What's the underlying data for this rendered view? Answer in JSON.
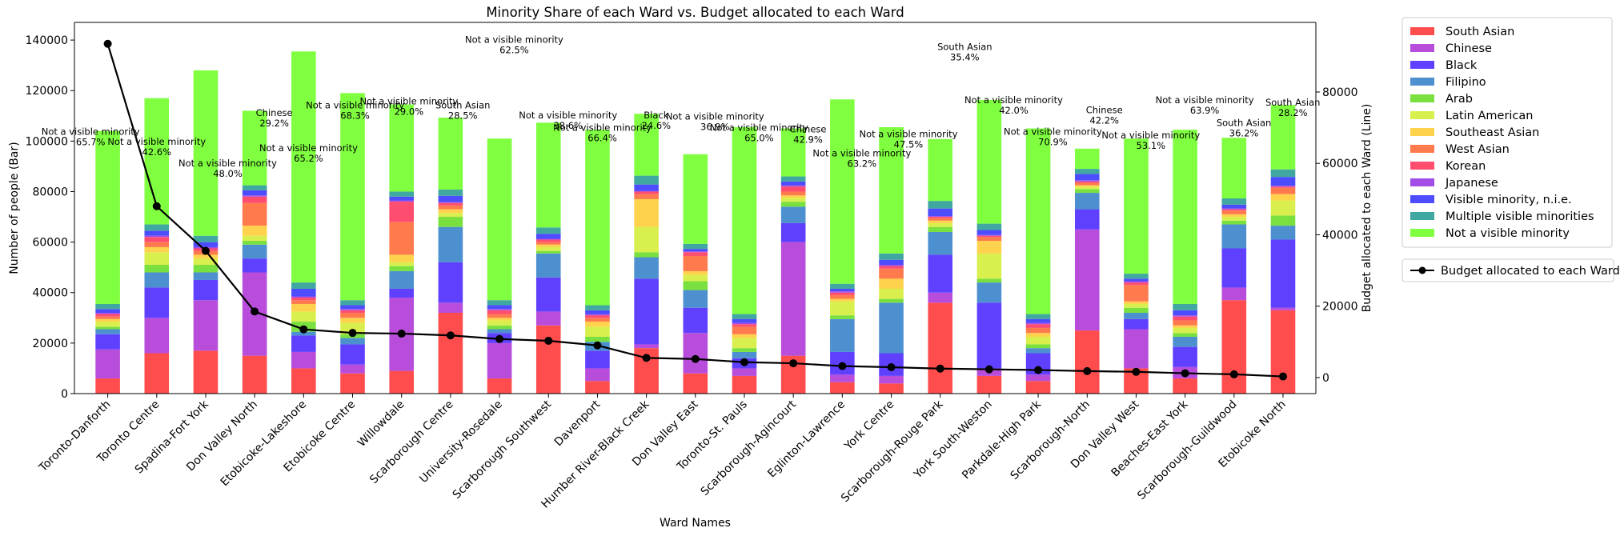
{
  "chart_data": {
    "type": "bar",
    "title": "Minority Share of each Ward vs. Budget allocated to each Ward",
    "xlabel": "Ward Names",
    "ylabel": "Number of people (Bar)",
    "ylabel_right": "Budget allocated to each Ward (Line)",
    "ylim": [
      0,
      147000
    ],
    "ylim_right": [
      -4500,
      99500
    ],
    "y_ticks": [
      "0",
      "20000",
      "40000",
      "60000",
      "80000",
      "100000",
      "120000",
      "140000"
    ],
    "y_ticks_right": [
      "0",
      "20000",
      "40000",
      "60000",
      "80000"
    ],
    "categories": [
      "Toronto-Danforth",
      "Toronto Centre",
      "Spadina-Fort York",
      "Don Valley North",
      "Etobicoke-Lakeshore",
      "Etobicoke Centre",
      "Willowdale",
      "Scarborough Centre",
      "University-Rosedale",
      "Scarborough Southwest",
      "Davenport",
      "Humber River-Black Creek",
      "Don Valley East",
      "Toronto-St. Pauls",
      "Scarborough-Agincourt",
      "Eglinton-Lawrence",
      "York Centre",
      "Scarborough-Rouge Park",
      "York South-Weston",
      "Parkdale-High Park",
      "Scarborough-North",
      "Don Valley West",
      "Beaches-East York",
      "Scarborough-Guildwood",
      "Etobicoke North"
    ],
    "series": [
      {
        "name": "South Asian",
        "color": "#ff4d4d",
        "values": [
          6000,
          16000,
          17000,
          15000,
          10000,
          8000,
          9000,
          32000,
          6000,
          27000,
          5000,
          18000,
          8000,
          7000,
          15000,
          4500,
          4000,
          36000,
          7000,
          5000,
          25000,
          10000,
          6000,
          37000,
          33000
        ]
      },
      {
        "name": "Chinese",
        "color": "#b84ddb",
        "values": [
          11500,
          14000,
          20000,
          33000,
          6500,
          3500,
          29000,
          4000,
          14000,
          5500,
          5000,
          1500,
          16000,
          3000,
          45000,
          3000,
          3000,
          4000,
          3000,
          2500,
          40000,
          15500,
          4500,
          5000,
          1000
        ]
      },
      {
        "name": "Black",
        "color": "#6040ff",
        "values": [
          6000,
          12000,
          8000,
          5500,
          6500,
          8000,
          3500,
          16000,
          4000,
          13500,
          7000,
          26000,
          10000,
          4000,
          7500,
          9000,
          9000,
          15000,
          26000,
          8500,
          8000,
          4000,
          8000,
          15500,
          27000
        ]
      },
      {
        "name": "Filipino",
        "color": "#4d90d0",
        "values": [
          2000,
          6000,
          3000,
          5500,
          1500,
          2500,
          7000,
          14000,
          1500,
          9500,
          3500,
          8500,
          7000,
          2500,
          6500,
          13000,
          20000,
          9000,
          8000,
          2000,
          6500,
          2500,
          4000,
          9500,
          5500
        ]
      },
      {
        "name": "Arab",
        "color": "#7ae040",
        "values": [
          1000,
          3000,
          3000,
          1500,
          4000,
          1500,
          2000,
          4000,
          1500,
          1000,
          2000,
          2000,
          3500,
          1500,
          2000,
          1500,
          1500,
          2000,
          1500,
          1500,
          1500,
          2000,
          1500,
          1500,
          4000
        ]
      },
      {
        "name": "Latin American",
        "color": "#d9ef4d",
        "values": [
          2000,
          5000,
          2500,
          2000,
          4000,
          4500,
          1500,
          1500,
          2000,
          1500,
          4000,
          10000,
          2500,
          4000,
          1500,
          5500,
          4000,
          1500,
          10000,
          3000,
          1000,
          1500,
          2000,
          1500,
          6000
        ]
      },
      {
        "name": "Southeast Asian",
        "color": "#ffd24d",
        "values": [
          1000,
          2000,
          1500,
          4000,
          3000,
          2000,
          3000,
          1500,
          1000,
          1000,
          2000,
          11000,
          1500,
          1500,
          1000,
          1000,
          4000,
          1000,
          5000,
          1500,
          500,
          1000,
          1000,
          1000,
          2500
        ]
      },
      {
        "name": "West Asian",
        "color": "#ff7a4d",
        "values": [
          1000,
          2000,
          1500,
          9000,
          1500,
          2000,
          13000,
          1500,
          1500,
          1000,
          1500,
          2000,
          6000,
          3000,
          1500,
          1500,
          4000,
          1000,
          1500,
          2000,
          1000,
          6500,
          2000,
          1500,
          2500
        ]
      },
      {
        "name": "Korean",
        "color": "#ff4d70",
        "values": [
          1000,
          2000,
          1000,
          2500,
          1000,
          1000,
          8000,
          1000,
          1500,
          1000,
          1000,
          1000,
          1500,
          1000,
          2000,
          1000,
          1000,
          500,
          500,
          1500,
          500,
          1000,
          1500,
          500,
          500
        ]
      },
      {
        "name": "Japanese",
        "color": "#a34de6",
        "values": [
          500,
          500,
          500,
          500,
          500,
          500,
          500,
          300,
          500,
          300,
          500,
          300,
          300,
          500,
          500,
          500,
          500,
          300,
          300,
          500,
          500,
          500,
          500,
          300,
          300
        ]
      },
      {
        "name": "Visible minority, n.i.e.",
        "color": "#4d4dff",
        "values": [
          1500,
          2000,
          2000,
          2000,
          3000,
          1500,
          1500,
          2500,
          1500,
          2000,
          1500,
          2500,
          1000,
          1500,
          1500,
          1000,
          2000,
          3000,
          2000,
          1500,
          2500,
          1000,
          2000,
          1500,
          3500
        ]
      },
      {
        "name": "Multiple visible minorities",
        "color": "#40a8a0",
        "values": [
          2000,
          2500,
          2500,
          2000,
          2500,
          2000,
          2000,
          2500,
          2000,
          2500,
          2000,
          3500,
          2000,
          2000,
          2000,
          2000,
          2500,
          3000,
          2500,
          2000,
          2000,
          2000,
          2500,
          2500,
          3000
        ]
      },
      {
        "name": "Not a visible minority",
        "color": "#80ff40",
        "values": [
          68500,
          50000,
          65500,
          29500,
          91500,
          82000,
          34500,
          28500,
          64000,
          41500,
          69500,
          24500,
          35500,
          74000,
          19000,
          73000,
          50000,
          24500,
          49000,
          73500,
          8000,
          53500,
          69000,
          24000,
          25500
        ]
      }
    ],
    "line_series": {
      "name": "Budget allocated to each Ward",
      "color": "#000000",
      "values": [
        93500,
        48000,
        35500,
        18500,
        13500,
        12500,
        12300,
        11800,
        10800,
        10300,
        9000,
        5500,
        5200,
        4300,
        4000,
        3200,
        2900,
        2500,
        2300,
        2100,
        1800,
        1600,
        1200,
        900,
        300
      ]
    },
    "annotations": [
      [
        "Not a visible minority",
        "65.7%"
      ],
      [
        "Not a visible minority",
        "42.6%"
      ],
      [
        "Not a visible minority",
        "48.0%"
      ],
      [
        "Chinese",
        "29.2%"
      ],
      [
        "Not a visible minority",
        "65.2%"
      ],
      [
        "Not a visible minority",
        "68.3%"
      ],
      [
        "Not a visible minority",
        "29.0%"
      ],
      [
        "South Asian",
        "28.5%"
      ],
      [
        "Not a visible minority",
        "62.5%"
      ],
      [
        "Not a visible minority",
        "38.6%"
      ],
      [
        "Not a visible minority",
        "66.4%"
      ],
      [
        "Black",
        "24.6%"
      ],
      [
        "Not a visible minority",
        "36.9%"
      ],
      [
        "Not a visible minority",
        "65.0%"
      ],
      [
        "Chinese",
        "42.9%"
      ],
      [
        "Not a visible minority",
        "63.2%"
      ],
      [
        "Not a visible minority",
        "47.5%"
      ],
      [
        "South Asian",
        "35.4%"
      ],
      [
        "Not a visible minority",
        "42.0%"
      ],
      [
        "Not a visible minority",
        "70.9%"
      ],
      [
        "Chinese",
        "42.2%"
      ],
      [
        "Not a visible minority",
        "53.1%"
      ],
      [
        "Not a visible minority",
        "63.9%"
      ],
      [
        "South Asian",
        "36.2%"
      ],
      [
        "South Asian",
        "28.2%"
      ]
    ],
    "annotation_y": [
      102500,
      98500,
      90000,
      110000,
      96000,
      113000,
      114500,
      113000,
      139000,
      109000,
      104000,
      109000,
      108500,
      104000,
      103500,
      94000,
      101500,
      136000,
      115000,
      102500,
      111000,
      101000,
      115000,
      106000,
      114000
    ],
    "annotation_xshift": [
      -0.35,
      0,
      0.45,
      0.4,
      0.1,
      0.05,
      0.15,
      0.25,
      0.3,
      0.4,
      0.1,
      0.2,
      0.4,
      0.3,
      0.3,
      0.4,
      0.35,
      0.5,
      0.5,
      0.3,
      0.35,
      0.3,
      0.4,
      0.2,
      0.2
    ],
    "legend_position": "outside right",
    "grid": false
  }
}
